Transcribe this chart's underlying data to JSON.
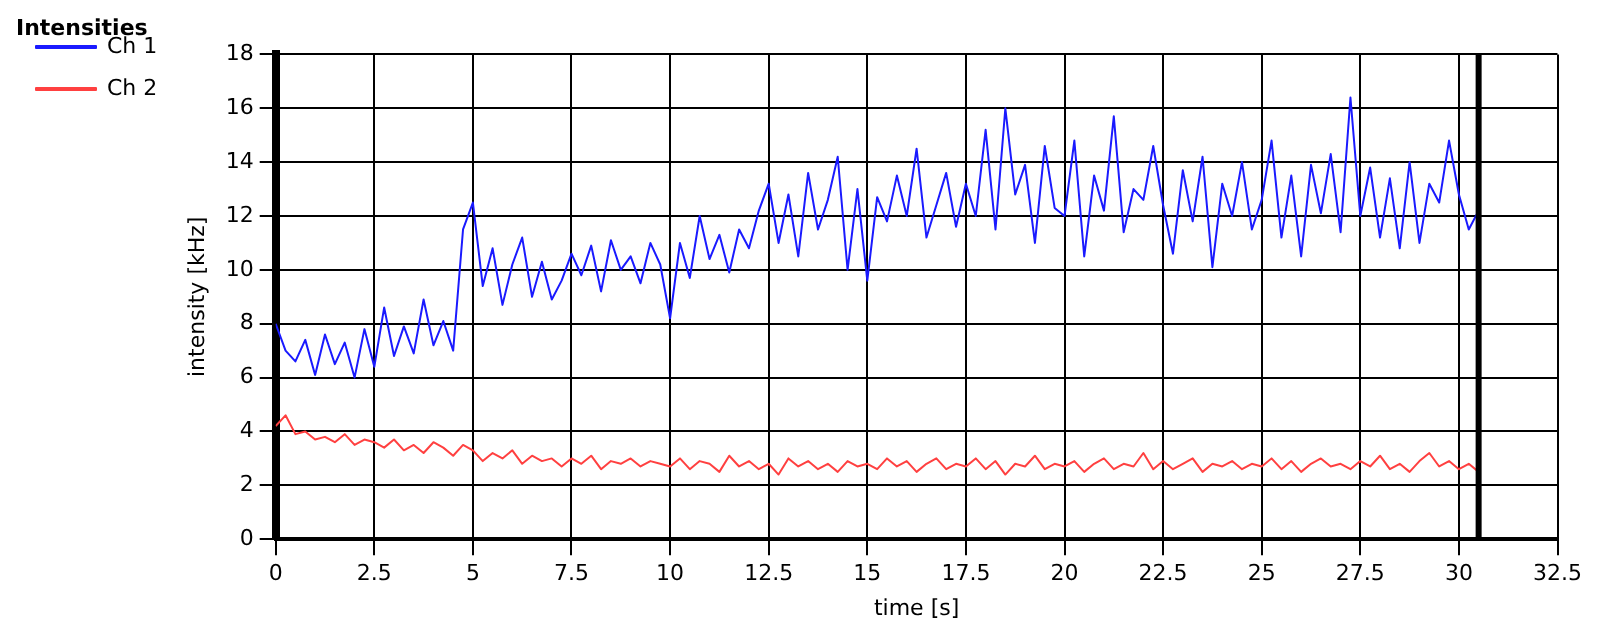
{
  "chart_data": {
    "type": "line",
    "title": "Intensities",
    "xlabel": "time [s]",
    "ylabel": "intensity [kHz]",
    "x": [
      0,
      0.25,
      0.5,
      0.75,
      1,
      1.25,
      1.5,
      1.75,
      2,
      2.25,
      2.5,
      2.75,
      3,
      3.25,
      3.5,
      3.75,
      4,
      4.25,
      4.5,
      4.75,
      5,
      5.25,
      5.5,
      5.75,
      6,
      6.25,
      6.5,
      6.75,
      7,
      7.25,
      7.5,
      7.75,
      8,
      8.25,
      8.5,
      8.75,
      9,
      9.25,
      9.5,
      9.75,
      10,
      10.25,
      10.5,
      10.75,
      11,
      11.25,
      11.5,
      11.75,
      12,
      12.25,
      12.5,
      12.75,
      13,
      13.25,
      13.5,
      13.75,
      14,
      14.25,
      14.5,
      14.75,
      15,
      15.25,
      15.5,
      15.75,
      16,
      16.25,
      16.5,
      16.75,
      17,
      17.25,
      17.5,
      17.75,
      18,
      18.25,
      18.5,
      18.75,
      19,
      19.25,
      19.5,
      19.75,
      20,
      20.25,
      20.5,
      20.75,
      21,
      21.25,
      21.5,
      21.75,
      22,
      22.25,
      22.5,
      22.75,
      23,
      23.25,
      23.5,
      23.75,
      24,
      24.25,
      24.5,
      24.75,
      25,
      25.25,
      25.5,
      25.75,
      26,
      26.25,
      26.5,
      26.75,
      27,
      27.25,
      27.5,
      27.75,
      28,
      28.25,
      28.5,
      28.75,
      29,
      29.25,
      29.5,
      29.75,
      30,
      30.25,
      30.5
    ],
    "series": [
      {
        "name": "Ch 1",
        "color": "#1a1aff",
        "values": [
          8.0,
          7.0,
          6.6,
          7.4,
          6.1,
          7.6,
          6.5,
          7.3,
          6.0,
          7.8,
          6.4,
          8.6,
          6.8,
          7.9,
          6.9,
          8.9,
          7.2,
          8.1,
          7.0,
          11.5,
          12.5,
          9.4,
          10.8,
          8.7,
          10.2,
          11.2,
          9.0,
          10.3,
          8.9,
          9.6,
          10.6,
          9.8,
          10.9,
          9.2,
          11.1,
          10.0,
          10.5,
          9.5,
          11.0,
          10.2,
          8.2,
          11.0,
          9.7,
          12.0,
          10.4,
          11.3,
          9.9,
          11.5,
          10.8,
          12.2,
          13.2,
          11.0,
          12.8,
          10.5,
          13.6,
          11.5,
          12.6,
          14.2,
          10.0,
          13.0,
          9.6,
          12.7,
          11.8,
          13.5,
          12.0,
          14.5,
          11.2,
          12.4,
          13.6,
          11.6,
          13.2,
          12.0,
          15.2,
          11.5,
          16.0,
          12.8,
          13.9,
          11.0,
          14.6,
          12.3,
          12.0,
          14.8,
          10.5,
          13.5,
          12.2,
          15.7,
          11.4,
          13.0,
          12.6,
          14.6,
          12.4,
          10.6,
          13.7,
          11.8,
          14.2,
          10.1,
          13.2,
          12.0,
          14.0,
          11.5,
          12.6,
          14.8,
          11.2,
          13.5,
          10.5,
          13.9,
          12.1,
          14.3,
          11.4,
          16.4,
          12.0,
          13.8,
          11.2,
          13.4,
          10.8,
          14.0,
          11.0,
          13.2,
          12.5,
          14.8,
          12.8,
          11.5,
          12.2
        ]
      },
      {
        "name": "Ch 2",
        "color": "#ff4040",
        "values": [
          4.2,
          4.6,
          3.9,
          4.0,
          3.7,
          3.8,
          3.6,
          3.9,
          3.5,
          3.7,
          3.6,
          3.4,
          3.7,
          3.3,
          3.5,
          3.2,
          3.6,
          3.4,
          3.1,
          3.5,
          3.3,
          2.9,
          3.2,
          3.0,
          3.3,
          2.8,
          3.1,
          2.9,
          3.0,
          2.7,
          3.0,
          2.8,
          3.1,
          2.6,
          2.9,
          2.8,
          3.0,
          2.7,
          2.9,
          2.8,
          2.7,
          3.0,
          2.6,
          2.9,
          2.8,
          2.5,
          3.1,
          2.7,
          2.9,
          2.6,
          2.8,
          2.4,
          3.0,
          2.7,
          2.9,
          2.6,
          2.8,
          2.5,
          2.9,
          2.7,
          2.8,
          2.6,
          3.0,
          2.7,
          2.9,
          2.5,
          2.8,
          3.0,
          2.6,
          2.8,
          2.7,
          3.0,
          2.6,
          2.9,
          2.4,
          2.8,
          2.7,
          3.1,
          2.6,
          2.8,
          2.7,
          2.9,
          2.5,
          2.8,
          3.0,
          2.6,
          2.8,
          2.7,
          3.2,
          2.6,
          2.9,
          2.6,
          2.8,
          3.0,
          2.5,
          2.8,
          2.7,
          2.9,
          2.6,
          2.8,
          2.7,
          3.0,
          2.6,
          2.9,
          2.5,
          2.8,
          3.0,
          2.7,
          2.8,
          2.6,
          2.9,
          2.7,
          3.1,
          2.6,
          2.8,
          2.5,
          2.9,
          3.2,
          2.7,
          2.9,
          2.6,
          2.8,
          2.5
        ]
      }
    ],
    "xlim": [
      0,
      32.5
    ],
    "xticks": [
      0,
      2.5,
      5,
      7.5,
      10,
      12.5,
      15,
      17.5,
      20,
      22.5,
      25,
      27.5,
      30,
      32.5
    ],
    "ylim": [
      0,
      18
    ],
    "yticks": [
      0,
      2,
      4,
      6,
      8,
      10,
      12,
      14,
      16,
      18
    ],
    "ref_lines": [
      {
        "axis": "x",
        "value": 30.5,
        "color": "#000000"
      }
    ],
    "grid": true,
    "legend": "top left",
    "marker": "none",
    "line_style": "solid"
  }
}
